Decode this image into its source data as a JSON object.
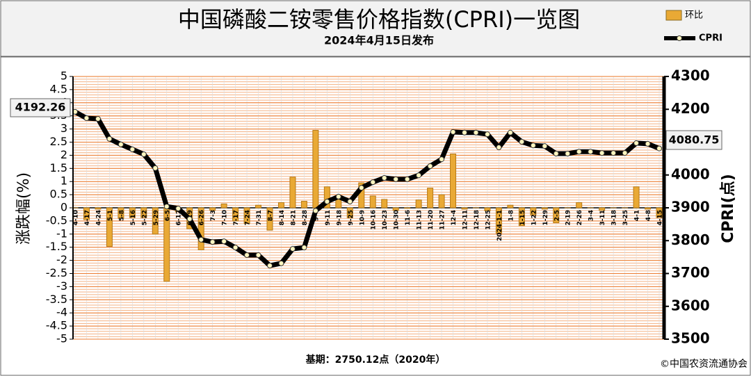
{
  "chart_data": {
    "type": "combo",
    "title": "中国磷酸二铵零售价格指数(CPRI)一览图",
    "subtitle": "2024年4月15日发布",
    "y_label": "涨跌幅(%)",
    "y2_label": "CPRI(点)",
    "base_note": "基期：2750.12点（2020年）",
    "copyright": "©中国农资流通协会",
    "annotations": [
      "4192.26",
      "4080.75"
    ],
    "categories": [
      "4-10",
      "4-17",
      "4-24",
      "5-1",
      "5-8",
      "5-16",
      "5-22",
      "5-29",
      "6-5",
      "6-12",
      "6-19",
      "6-26",
      "7-3",
      "7-10",
      "7-17",
      "7-24",
      "7-31",
      "8-7",
      "8-14",
      "8-21",
      "8-28",
      "9-4",
      "9-11",
      "9-18",
      "9-25",
      "10-9",
      "10-16",
      "10-23",
      "10-30",
      "11-6",
      "11-13",
      "11-20",
      "11-27",
      "12-4",
      "12-11",
      "12-18",
      "12-25",
      "2024-1-1",
      "1-8",
      "1-15",
      "1-22",
      "1-29",
      "2-5",
      "2-19",
      "2-26",
      "3-4",
      "3-11",
      "3-18",
      "3-25",
      "4-1",
      "4-8",
      "4-15"
    ],
    "series": [
      {
        "name": "环比",
        "type": "bar",
        "color": "#e9a935",
        "values": [
          0,
          -0.45,
          -0.05,
          -1.47,
          -0.4,
          -0.37,
          -0.37,
          -1.0,
          -2.8,
          -0.15,
          -0.8,
          -1.6,
          -0.1,
          0.15,
          -0.5,
          -0.6,
          0.1,
          -0.85,
          0.2,
          1.17,
          0.25,
          2.95,
          0.8,
          0.38,
          -0.38,
          0.95,
          0.45,
          0.32,
          -0.1,
          -0.02,
          0.3,
          0.75,
          0.5,
          2.05,
          -0.05,
          0,
          -0.12,
          -0.97,
          0.1,
          -0.68,
          -0.27,
          -0.05,
          -0.57,
          0,
          0.2,
          0,
          -0.1,
          0,
          0,
          0.8,
          -0.05,
          -0.37
        ]
      },
      {
        "name": "CPRI",
        "type": "line",
        "axis": "y2",
        "color": "#000000",
        "values": [
          4192.26,
          4173,
          4171,
          4110,
          4093,
          4078,
          4063,
          4021,
          3904,
          3898,
          3866,
          3803,
          3796,
          3798,
          3779,
          3756,
          3756,
          3724,
          3731,
          3775,
          3779,
          3891,
          3919,
          3934,
          3919,
          3961,
          3978,
          3991,
          3987,
          3987,
          3999,
          4027,
          4048,
          4131,
          4129,
          4129,
          4124,
          4084,
          4129,
          4101,
          4090,
          4088,
          4065,
          4065,
          4071,
          4071,
          4067,
          4067,
          4067,
          4097,
          4095,
          4080.75
        ]
      }
    ],
    "ylim": [
      -5,
      5
    ],
    "yticks": [
      -5,
      -4.5,
      -4,
      -3.5,
      -3,
      -2.5,
      -2,
      -1.5,
      -1,
      -0.5,
      0,
      0.5,
      1,
      1.5,
      2,
      2.5,
      3,
      3.5,
      4,
      4.5,
      5
    ],
    "y2lim": [
      3500,
      4300
    ],
    "y2ticks": [
      3500,
      3600,
      3700,
      3800,
      3900,
      4000,
      4100,
      4200,
      4300
    ],
    "grid": true
  }
}
